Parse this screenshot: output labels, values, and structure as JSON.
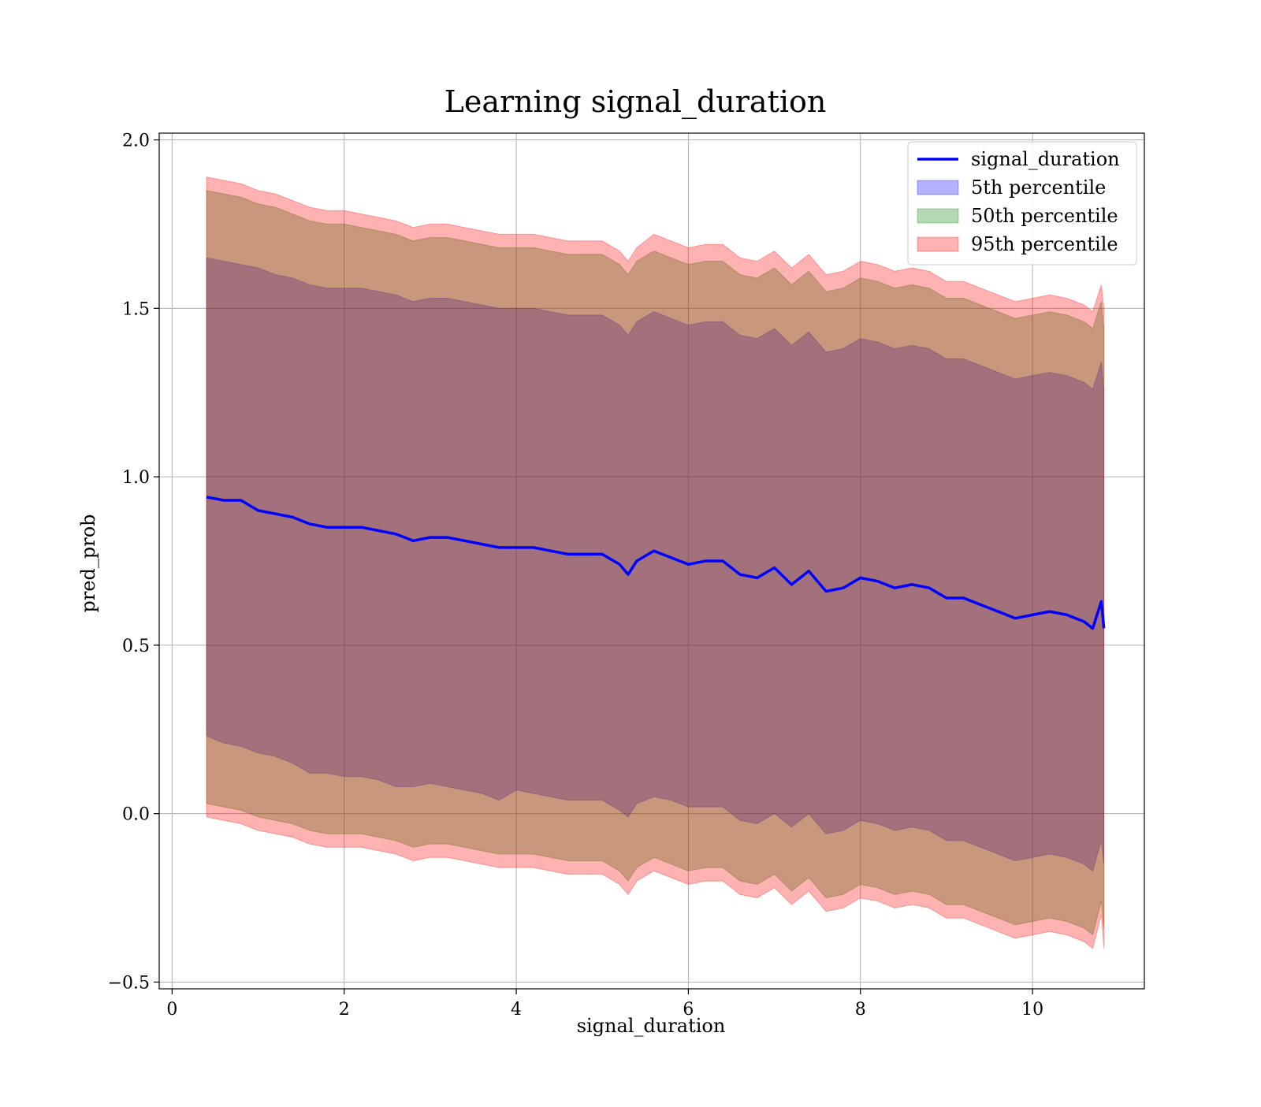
{
  "chart_data": {
    "type": "area",
    "title": "Learning signal_duration",
    "xlabel": "signal_duration",
    "ylabel": "pred_prob",
    "xlim": [
      -0.15,
      11.3
    ],
    "ylim": [
      -0.52,
      2.02
    ],
    "x_ticks": [
      0,
      2,
      4,
      6,
      8,
      10
    ],
    "x_tick_labels": [
      "0",
      "2",
      "4",
      "6",
      "8",
      "10"
    ],
    "y_ticks": [
      -0.5,
      0.0,
      0.5,
      1.0,
      1.5,
      2.0
    ],
    "y_tick_labels": [
      "−0.5",
      "0.0",
      "0.5",
      "1.0",
      "1.5",
      "2.0"
    ],
    "grid": true,
    "legend_position": "top-right",
    "x": [
      0.4,
      0.6,
      0.8,
      1.0,
      1.2,
      1.4,
      1.6,
      1.8,
      2.0,
      2.2,
      2.4,
      2.6,
      2.8,
      3.0,
      3.2,
      3.4,
      3.6,
      3.8,
      4.0,
      4.2,
      4.4,
      4.6,
      4.8,
      5.0,
      5.2,
      5.3,
      5.4,
      5.6,
      5.8,
      6.0,
      6.2,
      6.4,
      6.6,
      6.8,
      7.0,
      7.2,
      7.4,
      7.6,
      7.8,
      8.0,
      8.2,
      8.4,
      8.6,
      8.8,
      9.0,
      9.2,
      9.4,
      9.6,
      9.8,
      10.0,
      10.2,
      10.4,
      10.6,
      10.7,
      10.8,
      10.83
    ],
    "series": [
      {
        "name": "signal_duration",
        "kind": "line",
        "color": "#0000ff",
        "values": [
          0.94,
          0.93,
          0.93,
          0.9,
          0.89,
          0.88,
          0.86,
          0.85,
          0.85,
          0.85,
          0.84,
          0.83,
          0.81,
          0.82,
          0.82,
          0.81,
          0.8,
          0.79,
          0.79,
          0.79,
          0.78,
          0.77,
          0.77,
          0.77,
          0.74,
          0.71,
          0.75,
          0.78,
          0.76,
          0.74,
          0.75,
          0.75,
          0.71,
          0.7,
          0.73,
          0.68,
          0.72,
          0.66,
          0.67,
          0.7,
          0.69,
          0.67,
          0.68,
          0.67,
          0.64,
          0.64,
          0.62,
          0.6,
          0.58,
          0.59,
          0.6,
          0.59,
          0.57,
          0.55,
          0.63,
          0.55
        ]
      },
      {
        "name": "5th percentile",
        "kind": "band",
        "color": "#0000ff",
        "opacity": 0.3,
        "lower": [
          0.23,
          0.21,
          0.2,
          0.18,
          0.17,
          0.15,
          0.12,
          0.12,
          0.11,
          0.11,
          0.1,
          0.08,
          0.08,
          0.09,
          0.08,
          0.07,
          0.06,
          0.04,
          0.07,
          0.06,
          0.05,
          0.04,
          0.04,
          0.04,
          0.01,
          -0.01,
          0.03,
          0.05,
          0.04,
          0.02,
          0.02,
          0.02,
          -0.02,
          -0.03,
          0.0,
          -0.04,
          0.0,
          -0.06,
          -0.05,
          -0.02,
          -0.03,
          -0.05,
          -0.04,
          -0.05,
          -0.08,
          -0.08,
          -0.1,
          -0.12,
          -0.14,
          -0.13,
          -0.12,
          -0.13,
          -0.15,
          -0.17,
          -0.08,
          -0.15
        ],
        "upper": [
          1.65,
          1.64,
          1.63,
          1.62,
          1.6,
          1.59,
          1.57,
          1.56,
          1.56,
          1.56,
          1.55,
          1.54,
          1.52,
          1.53,
          1.53,
          1.52,
          1.51,
          1.5,
          1.5,
          1.5,
          1.49,
          1.48,
          1.48,
          1.48,
          1.45,
          1.42,
          1.46,
          1.49,
          1.47,
          1.45,
          1.46,
          1.46,
          1.42,
          1.41,
          1.44,
          1.39,
          1.43,
          1.37,
          1.38,
          1.41,
          1.4,
          1.38,
          1.39,
          1.38,
          1.35,
          1.35,
          1.33,
          1.31,
          1.29,
          1.3,
          1.31,
          1.3,
          1.28,
          1.26,
          1.34,
          1.26
        ]
      },
      {
        "name": "50th percentile",
        "kind": "band",
        "color": "#008000",
        "opacity": 0.3,
        "lower": [
          0.03,
          0.02,
          0.01,
          -0.01,
          -0.02,
          -0.03,
          -0.05,
          -0.06,
          -0.06,
          -0.06,
          -0.07,
          -0.08,
          -0.1,
          -0.09,
          -0.09,
          -0.1,
          -0.11,
          -0.12,
          -0.12,
          -0.12,
          -0.13,
          -0.14,
          -0.14,
          -0.14,
          -0.17,
          -0.2,
          -0.16,
          -0.13,
          -0.15,
          -0.17,
          -0.16,
          -0.16,
          -0.2,
          -0.21,
          -0.18,
          -0.23,
          -0.19,
          -0.25,
          -0.24,
          -0.21,
          -0.22,
          -0.24,
          -0.23,
          -0.24,
          -0.27,
          -0.27,
          -0.29,
          -0.31,
          -0.33,
          -0.32,
          -0.31,
          -0.32,
          -0.34,
          -0.36,
          -0.26,
          -0.34
        ],
        "upper": [
          1.85,
          1.84,
          1.83,
          1.81,
          1.8,
          1.78,
          1.76,
          1.75,
          1.75,
          1.74,
          1.73,
          1.72,
          1.7,
          1.71,
          1.71,
          1.7,
          1.69,
          1.68,
          1.68,
          1.68,
          1.67,
          1.66,
          1.66,
          1.66,
          1.63,
          1.6,
          1.64,
          1.67,
          1.65,
          1.63,
          1.64,
          1.64,
          1.6,
          1.59,
          1.62,
          1.57,
          1.61,
          1.55,
          1.56,
          1.59,
          1.58,
          1.56,
          1.57,
          1.56,
          1.53,
          1.53,
          1.51,
          1.49,
          1.47,
          1.48,
          1.49,
          1.48,
          1.46,
          1.44,
          1.52,
          1.44
        ]
      },
      {
        "name": "95th percentile",
        "kind": "band",
        "color": "#ff0000",
        "opacity": 0.3,
        "lower": [
          -0.01,
          -0.02,
          -0.03,
          -0.05,
          -0.06,
          -0.07,
          -0.09,
          -0.1,
          -0.1,
          -0.1,
          -0.11,
          -0.12,
          -0.14,
          -0.13,
          -0.13,
          -0.14,
          -0.15,
          -0.16,
          -0.16,
          -0.16,
          -0.17,
          -0.18,
          -0.18,
          -0.18,
          -0.21,
          -0.24,
          -0.2,
          -0.17,
          -0.19,
          -0.21,
          -0.2,
          -0.2,
          -0.24,
          -0.25,
          -0.22,
          -0.27,
          -0.23,
          -0.29,
          -0.28,
          -0.25,
          -0.26,
          -0.28,
          -0.27,
          -0.28,
          -0.31,
          -0.31,
          -0.33,
          -0.35,
          -0.37,
          -0.36,
          -0.35,
          -0.36,
          -0.38,
          -0.4,
          -0.3,
          -0.4
        ],
        "upper": [
          1.89,
          1.88,
          1.87,
          1.85,
          1.84,
          1.82,
          1.8,
          1.79,
          1.79,
          1.78,
          1.77,
          1.76,
          1.74,
          1.75,
          1.75,
          1.74,
          1.73,
          1.72,
          1.72,
          1.72,
          1.71,
          1.7,
          1.7,
          1.7,
          1.67,
          1.64,
          1.68,
          1.72,
          1.7,
          1.68,
          1.69,
          1.69,
          1.65,
          1.64,
          1.67,
          1.62,
          1.66,
          1.6,
          1.61,
          1.64,
          1.63,
          1.61,
          1.62,
          1.61,
          1.58,
          1.58,
          1.56,
          1.54,
          1.52,
          1.53,
          1.54,
          1.53,
          1.51,
          1.49,
          1.57,
          1.5
        ]
      }
    ]
  }
}
